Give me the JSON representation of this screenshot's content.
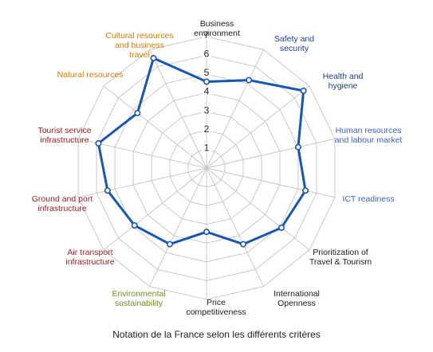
{
  "caption": "Notation de la France selon les différents critères",
  "colors": {
    "grid": "#c8c8c8",
    "series": "#1a56b0",
    "label_business": "#1f3c88",
    "label_human": "#3b63c4",
    "label_black": "#1a1a1a",
    "label_green": "#6a8f1f",
    "label_red": "#a32020",
    "label_orange": "#d2790a"
  },
  "chart_data": {
    "type": "radar",
    "rlim": [
      0,
      7
    ],
    "ticks": [
      "1",
      "2",
      "3",
      "4",
      "5",
      "6",
      "7"
    ],
    "categories": [
      "Business environment",
      "Safety and security",
      "Health and hygiene",
      "Human resources and labour market",
      "ICT readiness",
      "Prioritization of Travel & Tourism",
      "International Openness",
      "Price competitiveness",
      "Environmental sustainability",
      "Air transport infrastructure",
      "Ground and port infrastructure",
      "Tourist service infrastructure",
      "Natural resources",
      "Cultural resources and business travel"
    ],
    "series": [
      {
        "values": [
          4.6,
          5.2,
          6.6,
          5.0,
          5.4,
          5.1,
          4.5,
          3.4,
          4.5,
          4.9,
          5.4,
          5.9,
          4.7,
          6.5
        ]
      }
    ]
  }
}
